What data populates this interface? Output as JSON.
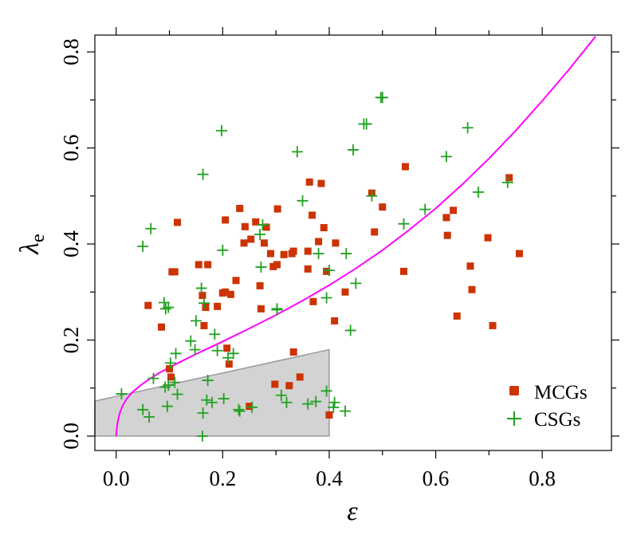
{
  "chart_data": {
    "type": "scatter",
    "title": "",
    "xlabel": "ε",
    "ylabel_main": "λ",
    "ylabel_sub": "e",
    "xlim": [
      -0.04,
      0.93
    ],
    "ylim": [
      -0.03,
      0.835
    ],
    "xticks": [
      0.0,
      0.2,
      0.4,
      0.6,
      0.8
    ],
    "yticks": [
      0.0,
      0.2,
      0.4,
      0.6,
      0.8
    ],
    "xtick_labels": [
      "0.0",
      "0.2",
      "0.4",
      "0.6",
      "0.8"
    ],
    "ytick_labels": [
      "0.0",
      "0.2",
      "0.4",
      "0.6",
      "0.8"
    ],
    "legend_position": "bottom-right",
    "colors": {
      "mcg": "#cc3300",
      "csg": "#22a022",
      "curve": "#ff00ff",
      "region_fill": "#d3d3d3",
      "region_edge": "#999999"
    },
    "shaded_region": {
      "vertices": [
        [
          -0.04,
          0.0
        ],
        [
          -0.04,
          0.073
        ],
        [
          0.4,
          0.18
        ],
        [
          0.4,
          0.0
        ]
      ]
    },
    "curve": {
      "name": "relation",
      "x": [
        0.0,
        0.002,
        0.006,
        0.012,
        0.02,
        0.03,
        0.045,
        0.06,
        0.08,
        0.1,
        0.13,
        0.16,
        0.2,
        0.25,
        0.3,
        0.35,
        0.4,
        0.45,
        0.5,
        0.55,
        0.6,
        0.65,
        0.7,
        0.75,
        0.8,
        0.85,
        0.9
      ],
      "y": [
        0.0,
        0.025,
        0.045,
        0.063,
        0.078,
        0.091,
        0.105,
        0.117,
        0.131,
        0.143,
        0.16,
        0.176,
        0.197,
        0.224,
        0.252,
        0.282,
        0.314,
        0.349,
        0.387,
        0.429,
        0.474,
        0.524,
        0.578,
        0.636,
        0.698,
        0.763,
        0.832
      ]
    },
    "series": [
      {
        "name": "MCGs",
        "marker": "square",
        "points": [
          [
            0.06,
            0.272
          ],
          [
            0.085,
            0.227
          ],
          [
            0.1,
            0.14
          ],
          [
            0.105,
            0.342
          ],
          [
            0.103,
            0.123
          ],
          [
            0.11,
            0.342
          ],
          [
            0.115,
            0.445
          ],
          [
            0.155,
            0.357
          ],
          [
            0.162,
            0.293
          ],
          [
            0.165,
            0.23
          ],
          [
            0.168,
            0.268
          ],
          [
            0.172,
            0.357
          ],
          [
            0.19,
            0.27
          ],
          [
            0.2,
            0.298
          ],
          [
            0.205,
            0.45
          ],
          [
            0.205,
            0.3
          ],
          [
            0.208,
            0.183
          ],
          [
            0.212,
            0.15
          ],
          [
            0.215,
            0.295
          ],
          [
            0.225,
            0.324
          ],
          [
            0.232,
            0.474
          ],
          [
            0.24,
            0.402
          ],
          [
            0.242,
            0.436
          ],
          [
            0.25,
            0.062
          ],
          [
            0.253,
            0.41
          ],
          [
            0.262,
            0.446
          ],
          [
            0.27,
            0.313
          ],
          [
            0.272,
            0.265
          ],
          [
            0.278,
            0.402
          ],
          [
            0.282,
            0.435
          ],
          [
            0.29,
            0.38
          ],
          [
            0.295,
            0.353
          ],
          [
            0.298,
            0.108
          ],
          [
            0.302,
            0.357
          ],
          [
            0.303,
            0.473
          ],
          [
            0.315,
            0.378
          ],
          [
            0.325,
            0.105
          ],
          [
            0.33,
            0.38
          ],
          [
            0.333,
            0.385
          ],
          [
            0.333,
            0.175
          ],
          [
            0.345,
            0.123
          ],
          [
            0.36,
            0.348
          ],
          [
            0.36,
            0.385
          ],
          [
            0.363,
            0.529
          ],
          [
            0.368,
            0.46
          ],
          [
            0.37,
            0.28
          ],
          [
            0.38,
            0.405
          ],
          [
            0.385,
            0.526
          ],
          [
            0.39,
            0.434
          ],
          [
            0.395,
            0.343
          ],
          [
            0.4,
            0.044
          ],
          [
            0.41,
            0.24
          ],
          [
            0.412,
            0.402
          ],
          [
            0.43,
            0.3
          ],
          [
            0.48,
            0.506
          ],
          [
            0.485,
            0.425
          ],
          [
            0.5,
            0.477
          ],
          [
            0.54,
            0.343
          ],
          [
            0.543,
            0.561
          ],
          [
            0.62,
            0.455
          ],
          [
            0.622,
            0.418
          ],
          [
            0.633,
            0.47
          ],
          [
            0.64,
            0.25
          ],
          [
            0.665,
            0.354
          ],
          [
            0.668,
            0.305
          ],
          [
            0.698,
            0.413
          ],
          [
            0.707,
            0.23
          ],
          [
            0.738,
            0.538
          ],
          [
            0.757,
            0.38
          ]
        ]
      },
      {
        "name": "CSGs",
        "marker": "plus",
        "points": [
          [
            0.01,
            0.088
          ],
          [
            0.05,
            0.395
          ],
          [
            0.05,
            0.055
          ],
          [
            0.062,
            0.04
          ],
          [
            0.065,
            0.432
          ],
          [
            0.07,
            0.12
          ],
          [
            0.09,
            0.278
          ],
          [
            0.092,
            0.102
          ],
          [
            0.093,
            0.265
          ],
          [
            0.096,
            0.062
          ],
          [
            0.098,
            0.268
          ],
          [
            0.098,
            0.106
          ],
          [
            0.102,
            0.152
          ],
          [
            0.11,
            0.112
          ],
          [
            0.112,
            0.172
          ],
          [
            0.115,
            0.087
          ],
          [
            0.14,
            0.198
          ],
          [
            0.148,
            0.18
          ],
          [
            0.15,
            0.24
          ],
          [
            0.16,
            0.308
          ],
          [
            0.162,
            0.0
          ],
          [
            0.163,
            0.048
          ],
          [
            0.163,
            0.545
          ],
          [
            0.165,
            0.277
          ],
          [
            0.17,
            0.075
          ],
          [
            0.172,
            0.116
          ],
          [
            0.18,
            0.07
          ],
          [
            0.185,
            0.212
          ],
          [
            0.19,
            0.178
          ],
          [
            0.198,
            0.636
          ],
          [
            0.2,
            0.387
          ],
          [
            0.202,
            0.078
          ],
          [
            0.21,
            0.163
          ],
          [
            0.22,
            0.172
          ],
          [
            0.23,
            0.055
          ],
          [
            0.232,
            0.052
          ],
          [
            0.255,
            0.06
          ],
          [
            0.27,
            0.42
          ],
          [
            0.272,
            0.352
          ],
          [
            0.275,
            0.44
          ],
          [
            0.302,
            0.263
          ],
          [
            0.302,
            0.265
          ],
          [
            0.31,
            0.085
          ],
          [
            0.32,
            0.07
          ],
          [
            0.34,
            0.592
          ],
          [
            0.35,
            0.49
          ],
          [
            0.36,
            0.067
          ],
          [
            0.375,
            0.072
          ],
          [
            0.38,
            0.38
          ],
          [
            0.395,
            0.288
          ],
          [
            0.395,
            0.094
          ],
          [
            0.4,
            0.345
          ],
          [
            0.408,
            0.06
          ],
          [
            0.41,
            0.07
          ],
          [
            0.43,
            0.052
          ],
          [
            0.432,
            0.38
          ],
          [
            0.44,
            0.22
          ],
          [
            0.445,
            0.596
          ],
          [
            0.45,
            0.318
          ],
          [
            0.465,
            0.65
          ],
          [
            0.47,
            0.65
          ],
          [
            0.48,
            0.5
          ],
          [
            0.497,
            0.705
          ],
          [
            0.5,
            0.705
          ],
          [
            0.54,
            0.442
          ],
          [
            0.58,
            0.472
          ],
          [
            0.62,
            0.582
          ],
          [
            0.66,
            0.642
          ],
          [
            0.68,
            0.508
          ],
          [
            0.735,
            0.528
          ]
        ]
      }
    ]
  }
}
